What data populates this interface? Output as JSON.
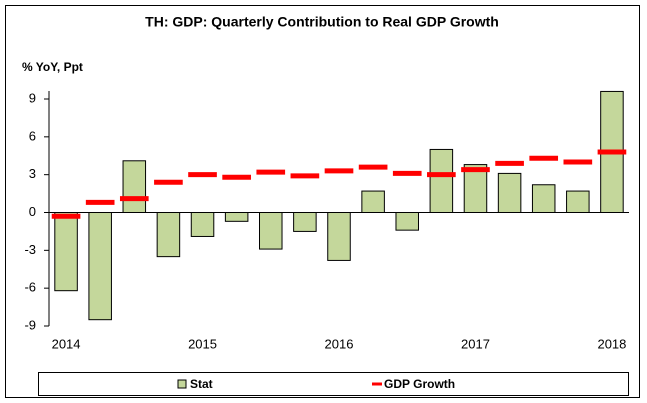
{
  "chart_data": {
    "type": "bar",
    "title": "TH: GDP: Quarterly Contribution to Real GDP Growth",
    "y_axis_label": "% YoY, Ppt",
    "categories": [
      "2014",
      null,
      null,
      null,
      "2015",
      null,
      null,
      null,
      "2016",
      null,
      null,
      null,
      "2017",
      null,
      null,
      null,
      "2018"
    ],
    "series": [
      {
        "name": "Stat",
        "color": "#c4d79b",
        "marker": "bar",
        "values": [
          -6.2,
          -8.5,
          4.1,
          -3.5,
          -1.9,
          -0.7,
          -2.9,
          -1.5,
          -3.8,
          1.7,
          -1.4,
          5.0,
          3.8,
          3.1,
          2.2,
          1.7,
          9.6
        ]
      },
      {
        "name": "GDP Growth",
        "color": "#ff0000",
        "marker": "dash",
        "values": [
          -0.3,
          0.8,
          1.1,
          2.4,
          3.0,
          2.8,
          3.2,
          2.9,
          3.3,
          3.6,
          3.1,
          3.0,
          3.4,
          3.9,
          4.3,
          4.0,
          4.8
        ]
      }
    ],
    "ylim": [
      -9,
      9
    ],
    "yticks": [
      -9,
      -6,
      -3,
      0,
      3,
      6,
      9
    ],
    "legend": "bottom"
  }
}
